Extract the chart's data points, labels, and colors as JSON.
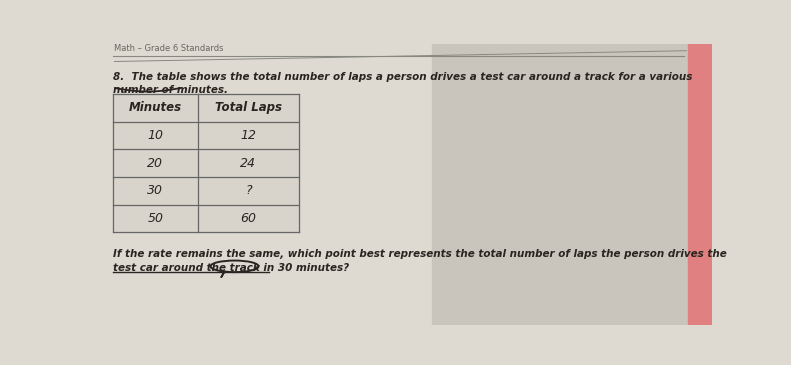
{
  "header": "Math – Grade 6 Standards",
  "question_line1": "8.  The table shows the total number of laps a person drives a test car around a track for a various",
  "question_line2": "number of minutes.",
  "table_headers": [
    "Minutes",
    "Total Laps"
  ],
  "table_data": [
    [
      "10",
      "12"
    ],
    [
      "20",
      "24"
    ],
    [
      "30",
      "?"
    ],
    [
      "50",
      "60"
    ]
  ],
  "follow_up_line1": "If the rate remains the same, which point best represents the total number of laps the person drives the",
  "follow_up_line2": "test car around the track in 30 minutes?",
  "bg_left": "#dedad2",
  "bg_right": "#cac5bc",
  "bg_far_right": "#e08080",
  "table_cell_bg": "#d8d4cc",
  "table_header_bg": "#c8c4bc",
  "table_border": "#666666",
  "text_dark": "#2a2520",
  "text_gray": "#6a6560",
  "line_color": "#888880",
  "top_line_color": "#888880",
  "underline_color": "#2a2520"
}
